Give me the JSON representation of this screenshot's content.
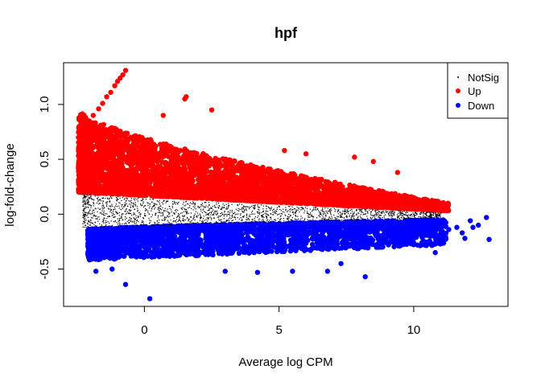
{
  "chart_data": {
    "type": "scatter",
    "title": "hpf",
    "xlabel": "Average log CPM",
    "ylabel": "log-fold-change",
    "xlim": [
      -3.0,
      13.5
    ],
    "ylim": [
      -0.84,
      1.38
    ],
    "x_ticks": [
      0,
      5,
      10
    ],
    "y_ticks": [
      -0.5,
      0.0,
      0.5,
      1.0
    ],
    "x_tick_labels": [
      "0",
      "5",
      "10"
    ],
    "y_tick_labels": [
      "-0.5",
      "0.0",
      "0.5",
      "1.0"
    ],
    "grid": false,
    "legend_position": "top-right",
    "legend": [
      {
        "label": "NotSig",
        "color": "#000000",
        "marker": "dot"
      },
      {
        "label": "Up",
        "color": "#ff0000",
        "marker": "circle"
      },
      {
        "label": "Down",
        "color": "#0000ff",
        "marker": "circle"
      }
    ],
    "series": [
      {
        "name": "NotSig",
        "color": "#000000",
        "band": {
          "x_range": [
            -2.3,
            11.0
          ],
          "upper_at_start": 0.2,
          "upper_at_end": 0.02,
          "lower_at_start": -0.12,
          "lower_at_end": -0.03,
          "count": 1800
        }
      },
      {
        "name": "Up",
        "color": "#ff0000",
        "band": {
          "x_range": [
            -2.45,
            11.3
          ],
          "upper_at_start": 0.95,
          "upper_at_end": 0.1,
          "lower_at_start": 0.2,
          "lower_at_end": 0.03,
          "count": 4200
        },
        "extreme_points": [
          [
            -0.7,
            1.31
          ],
          [
            -0.8,
            1.27
          ],
          [
            -0.9,
            1.24
          ],
          [
            -1.0,
            1.21
          ],
          [
            -1.1,
            1.17
          ],
          [
            -1.25,
            1.11
          ],
          [
            -1.4,
            1.07
          ],
          [
            -1.55,
            1.01
          ],
          [
            -1.7,
            0.96
          ],
          [
            -1.9,
            0.9
          ],
          [
            -2.1,
            0.82
          ],
          [
            -2.3,
            0.73
          ],
          [
            -2.45,
            0.7
          ],
          [
            1.5,
            1.05
          ],
          [
            1.55,
            1.07
          ],
          [
            2.5,
            0.95
          ],
          [
            0.7,
            0.9
          ],
          [
            5.2,
            0.58
          ],
          [
            6.0,
            0.55
          ],
          [
            7.8,
            0.52
          ],
          [
            8.5,
            0.48
          ],
          [
            9.4,
            0.38
          ],
          [
            10.0,
            0.15
          ],
          [
            10.5,
            0.1
          ],
          [
            11.2,
            0.08
          ]
        ]
      },
      {
        "name": "Down",
        "color": "#0000ff",
        "band": {
          "x_range": [
            -2.1,
            11.2
          ],
          "upper_at_start": -0.14,
          "upper_at_end": -0.05,
          "lower_at_start": -0.42,
          "lower_at_end": -0.28,
          "count": 3000
        },
        "extreme_points": [
          [
            -0.7,
            -0.64
          ],
          [
            0.2,
            -0.77
          ],
          [
            -1.8,
            -0.52
          ],
          [
            -1.2,
            -0.5
          ],
          [
            3.0,
            -0.52
          ],
          [
            4.2,
            -0.53
          ],
          [
            5.5,
            -0.52
          ],
          [
            6.8,
            -0.52
          ],
          [
            8.2,
            -0.57
          ],
          [
            7.3,
            -0.45
          ],
          [
            10.6,
            -0.2
          ],
          [
            10.7,
            -0.28
          ],
          [
            10.8,
            -0.35
          ],
          [
            11.3,
            -0.14
          ],
          [
            11.8,
            -0.17
          ],
          [
            11.9,
            -0.22
          ],
          [
            12.2,
            -0.12
          ],
          [
            12.4,
            -0.1
          ],
          [
            12.8,
            -0.23
          ],
          [
            12.7,
            -0.03
          ],
          [
            12.1,
            -0.06
          ],
          [
            11.6,
            -0.12
          ]
        ]
      }
    ]
  }
}
